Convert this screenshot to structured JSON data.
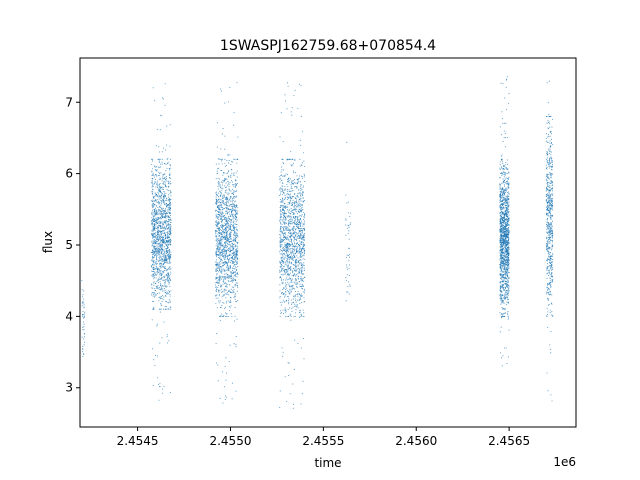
{
  "chart_data": {
    "type": "scatter",
    "title": "1SWASPJ162759.68+070854.4",
    "xlabel": "time",
    "ylabel": "flux",
    "x_offset_label": "1e6",
    "xlim": [
      2454190,
      2456860
    ],
    "ylim": [
      2.45,
      7.62
    ],
    "x_ticks": [
      2454500,
      2455000,
      2455500,
      2456000,
      2456500
    ],
    "x_tick_labels": [
      "2.4545",
      "2.4550",
      "2.4555",
      "2.4560",
      "2.4565"
    ],
    "y_ticks": [
      3,
      4,
      5,
      6,
      7
    ],
    "y_tick_labels": [
      "3",
      "4",
      "5",
      "6",
      "7"
    ],
    "grid": false,
    "marker_color": "#1f77b4",
    "observing_seasons": [
      {
        "x": [
          2454200,
          2454215
        ],
        "y_core": [
          3.3,
          4.5
        ],
        "y_extent": [
          3.1,
          4.6
        ],
        "density": "sparse"
      },
      {
        "x": [
          2454575,
          2454680
        ],
        "y_core": [
          4.1,
          6.2
        ],
        "y_extent": [
          2.8,
          7.4
        ],
        "density": "dense"
      },
      {
        "x": [
          2454920,
          2455040
        ],
        "y_core": [
          4.0,
          6.2
        ],
        "y_extent": [
          2.7,
          7.3
        ],
        "density": "dense"
      },
      {
        "x": [
          2455265,
          2455400
        ],
        "y_core": [
          4.0,
          6.2
        ],
        "y_extent": [
          2.7,
          7.3
        ],
        "density": "dense"
      },
      {
        "x": [
          2455620,
          2455650
        ],
        "y_core": [
          4.2,
          5.7
        ],
        "y_extent": [
          3.6,
          7.1
        ],
        "density": "sparse"
      },
      {
        "x": [
          2456450,
          2456500
        ],
        "y_core": [
          4.0,
          6.2
        ],
        "y_extent": [
          3.3,
          7.4
        ],
        "density": "dense"
      },
      {
        "x": [
          2456700,
          2456735
        ],
        "y_core": [
          4.0,
          6.8
        ],
        "y_extent": [
          2.7,
          7.3
        ],
        "density": "medium"
      }
    ]
  }
}
